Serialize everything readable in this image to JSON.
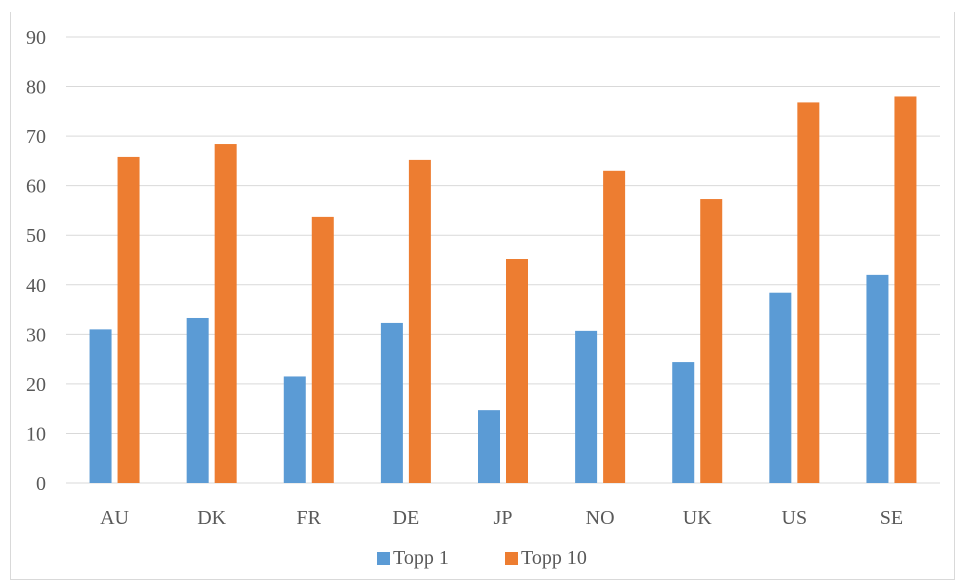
{
  "chart_data": {
    "type": "bar",
    "title": "",
    "categories": [
      "AU",
      "DK",
      "FR",
      "DE",
      "JP",
      "NO",
      "UK",
      "US",
      "SE"
    ],
    "series": [
      {
        "name": "Topp 1",
        "color": "#5b9bd5",
        "values": [
          31,
          33.3,
          21.5,
          32.3,
          14.7,
          30.7,
          24.4,
          38.4,
          42
        ]
      },
      {
        "name": "Topp 10",
        "color": "#ed7d31",
        "values": [
          65.8,
          68.4,
          53.7,
          65.2,
          45.2,
          63,
          57.3,
          76.8,
          78
        ]
      }
    ],
    "y_ticks": [
      "0",
      "10",
      "20",
      "30",
      "40",
      "50",
      "60",
      "70",
      "80",
      "90"
    ],
    "ylim": [
      0,
      90
    ],
    "grid": true,
    "legend_position": "bottom"
  }
}
